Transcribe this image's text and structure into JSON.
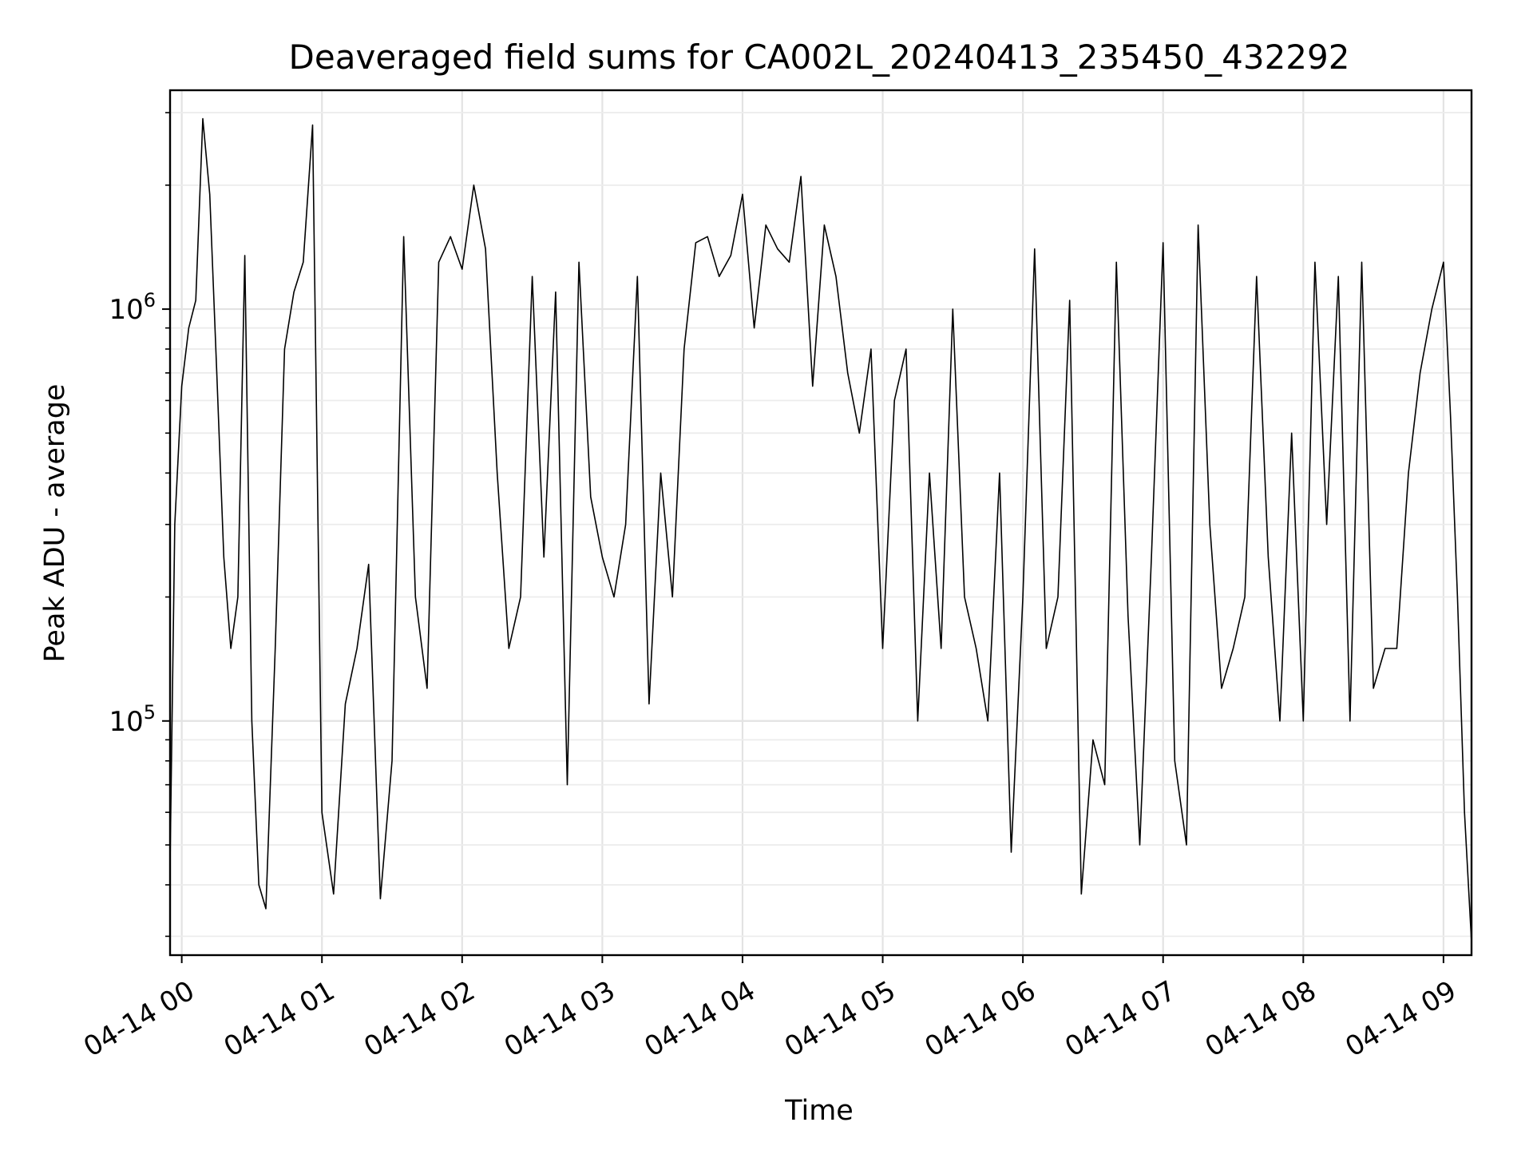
{
  "chart_data": {
    "type": "line",
    "title": "Deaveraged field sums for CA002L_20240413_235450_432292",
    "xlabel": "Time",
    "ylabel": "Peak ADU - average",
    "yscale": "log",
    "grid": "on (major and minor)",
    "line_color": "#000000",
    "xlim": [
      "2024-04-13 23:55",
      "2024-04-14 09:12"
    ],
    "ylim": [
      27000,
      3400000
    ],
    "x_ticks": [
      "04-14 00",
      "04-14 01",
      "04-14 02",
      "04-14 03",
      "04-14 04",
      "04-14 05",
      "04-14 06",
      "04-14 07",
      "04-14 08",
      "04-14 09"
    ],
    "y_ticks": [
      {
        "value": 100000,
        "base": "10",
        "exp": "5"
      },
      {
        "value": 1000000,
        "base": "10",
        "exp": "6"
      }
    ],
    "series": [
      {
        "x": [
          "2024-04-13 23:55",
          "2024-04-13 23:57",
          "2024-04-14 00:00",
          "2024-04-14 00:03",
          "2024-04-14 00:06",
          "2024-04-14 00:09",
          "2024-04-14 00:12",
          "2024-04-14 00:15",
          "2024-04-14 00:18",
          "2024-04-14 00:21",
          "2024-04-14 00:24",
          "2024-04-14 00:27",
          "2024-04-14 00:30",
          "2024-04-14 00:33",
          "2024-04-14 00:36",
          "2024-04-14 00:40",
          "2024-04-14 00:44",
          "2024-04-14 00:48",
          "2024-04-14 00:52",
          "2024-04-14 00:56",
          "2024-04-14 01:00",
          "2024-04-14 01:05",
          "2024-04-14 01:10",
          "2024-04-14 01:15",
          "2024-04-14 01:20",
          "2024-04-14 01:25",
          "2024-04-14 01:30",
          "2024-04-14 01:35",
          "2024-04-14 01:40",
          "2024-04-14 01:45",
          "2024-04-14 01:50",
          "2024-04-14 01:55",
          "2024-04-14 02:00",
          "2024-04-14 02:05",
          "2024-04-14 02:10",
          "2024-04-14 02:15",
          "2024-04-14 02:20",
          "2024-04-14 02:25",
          "2024-04-14 02:30",
          "2024-04-14 02:35",
          "2024-04-14 02:40",
          "2024-04-14 02:45",
          "2024-04-14 02:50",
          "2024-04-14 02:55",
          "2024-04-14 03:00",
          "2024-04-14 03:05",
          "2024-04-14 03:10",
          "2024-04-14 03:15",
          "2024-04-14 03:20",
          "2024-04-14 03:25",
          "2024-04-14 03:30",
          "2024-04-14 03:35",
          "2024-04-14 03:40",
          "2024-04-14 03:45",
          "2024-04-14 03:50",
          "2024-04-14 03:55",
          "2024-04-14 04:00",
          "2024-04-14 04:05",
          "2024-04-14 04:10",
          "2024-04-14 04:15",
          "2024-04-14 04:20",
          "2024-04-14 04:25",
          "2024-04-14 04:30",
          "2024-04-14 04:35",
          "2024-04-14 04:40",
          "2024-04-14 04:45",
          "2024-04-14 04:50",
          "2024-04-14 04:55",
          "2024-04-14 05:00",
          "2024-04-14 05:05",
          "2024-04-14 05:10",
          "2024-04-14 05:15",
          "2024-04-14 05:20",
          "2024-04-14 05:25",
          "2024-04-14 05:30",
          "2024-04-14 05:35",
          "2024-04-14 05:40",
          "2024-04-14 05:45",
          "2024-04-14 05:50",
          "2024-04-14 05:55",
          "2024-04-14 06:00",
          "2024-04-14 06:05",
          "2024-04-14 06:10",
          "2024-04-14 06:15",
          "2024-04-14 06:20",
          "2024-04-14 06:25",
          "2024-04-14 06:30",
          "2024-04-14 06:35",
          "2024-04-14 06:40",
          "2024-04-14 06:45",
          "2024-04-14 06:50",
          "2024-04-14 06:55",
          "2024-04-14 07:00",
          "2024-04-14 07:05",
          "2024-04-14 07:10",
          "2024-04-14 07:15",
          "2024-04-14 07:20",
          "2024-04-14 07:25",
          "2024-04-14 07:30",
          "2024-04-14 07:35",
          "2024-04-14 07:40",
          "2024-04-14 07:45",
          "2024-04-14 07:50",
          "2024-04-14 07:55",
          "2024-04-14 08:00",
          "2024-04-14 08:05",
          "2024-04-14 08:10",
          "2024-04-14 08:15",
          "2024-04-14 08:20",
          "2024-04-14 08:25",
          "2024-04-14 08:30",
          "2024-04-14 08:35",
          "2024-04-14 08:40",
          "2024-04-14 08:45",
          "2024-04-14 08:50",
          "2024-04-14 08:55",
          "2024-04-14 09:00",
          "2024-04-14 09:03",
          "2024-04-14 09:06",
          "2024-04-14 09:09",
          "2024-04-14 09:12"
        ],
        "y": [
          45000,
          300000,
          650000,
          900000,
          1050000,
          2900000,
          1900000,
          700000,
          250000,
          150000,
          200000,
          1350000,
          100000,
          40000,
          35000,
          150000,
          800000,
          1100000,
          1300000,
          2800000,
          60000,
          38000,
          110000,
          150000,
          240000,
          37000,
          80000,
          1500000,
          200000,
          120000,
          1300000,
          1500000,
          1250000,
          2000000,
          1400000,
          400000,
          150000,
          200000,
          1200000,
          250000,
          1100000,
          70000,
          1300000,
          350000,
          250000,
          200000,
          300000,
          1200000,
          110000,
          400000,
          200000,
          800000,
          1450000,
          1500000,
          1200000,
          1350000,
          1900000,
          900000,
          1600000,
          1400000,
          1300000,
          2100000,
          650000,
          1600000,
          1200000,
          700000,
          500000,
          800000,
          150000,
          600000,
          800000,
          100000,
          400000,
          150000,
          1000000,
          200000,
          150000,
          100000,
          400000,
          48000,
          200000,
          1400000,
          150000,
          200000,
          1050000,
          38000,
          90000,
          70000,
          1300000,
          180000,
          50000,
          250000,
          1450000,
          80000,
          50000,
          1600000,
          300000,
          120000,
          150000,
          200000,
          1200000,
          250000,
          100000,
          500000,
          100000,
          1300000,
          300000,
          1200000,
          100000,
          1300000,
          120000,
          150000,
          150000,
          400000,
          700000,
          1000000,
          1300000,
          550000,
          200000,
          60000,
          29000
        ]
      }
    ]
  }
}
